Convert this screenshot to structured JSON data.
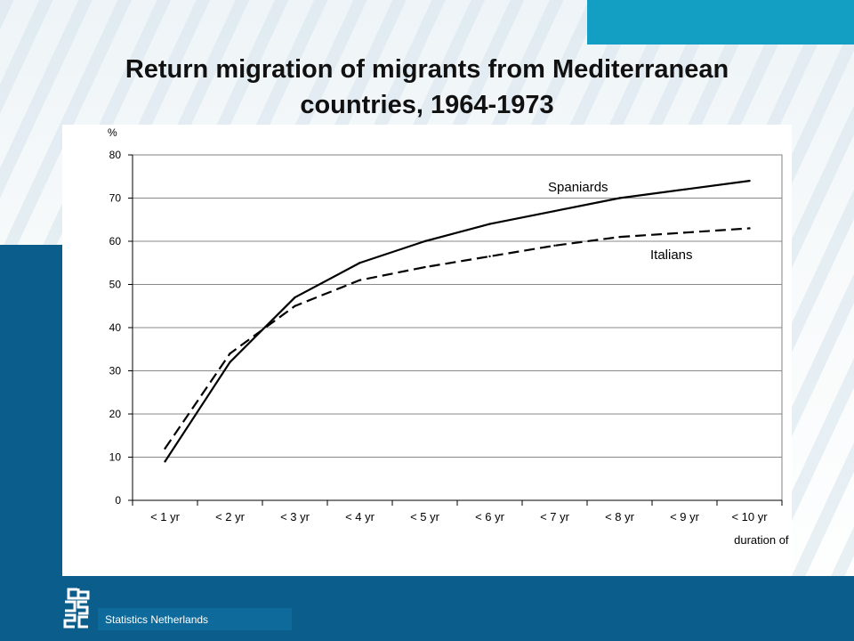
{
  "title": "Return migration of migrants from Mediterranean countries, 1964-1973",
  "footer": {
    "text": "Statistics Netherlands"
  },
  "logo": {
    "icon": "cbs-logo"
  },
  "colors": {
    "band": "#0b5e8c",
    "accent": "#139fc3",
    "line": "#000000"
  },
  "chart_data": {
    "type": "line",
    "ylabel": "%",
    "xlabel": "duration of stay",
    "categories": [
      "< 1 yr",
      "< 2 yr",
      "< 3 yr",
      "< 4 yr",
      "< 5 yr",
      "< 6 yr",
      "< 7 yr",
      "< 8 yr",
      "< 9 yr",
      "< 10 yr"
    ],
    "ylim": [
      0,
      80
    ],
    "yticks": [
      0,
      10,
      20,
      30,
      40,
      50,
      60,
      70,
      80
    ],
    "grid": true,
    "series": [
      {
        "name": "Spaniards",
        "style": "solid",
        "values": [
          9,
          32,
          47,
          55,
          60,
          64,
          67,
          70,
          72,
          74
        ]
      },
      {
        "name": "Italians",
        "style": "dashed",
        "values": [
          12,
          34,
          45,
          51,
          54,
          56.5,
          59,
          61,
          62,
          63
        ]
      }
    ]
  }
}
